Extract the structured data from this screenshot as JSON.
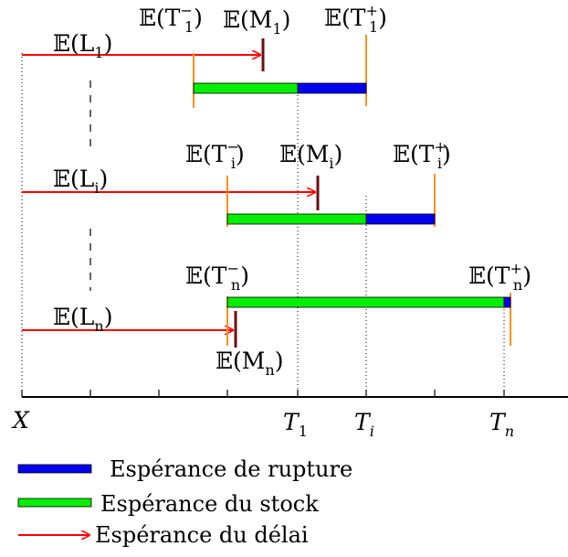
{
  "colors": {
    "rupture": "#0000ee",
    "stock": "#00ee00",
    "delai": "#ff0000",
    "boundary": "#ff9020",
    "mean_marker": "#6b0f0f",
    "axis": "#000000"
  },
  "rows": [
    {
      "id": "1",
      "L": "1",
      "T_minus": "1",
      "M": "1",
      "T_plus": "1",
      "stock_label": "T_1"
    },
    {
      "id": "i",
      "L": "i",
      "T_minus": "i",
      "M": "i",
      "T_plus": "i",
      "stock_label": "T_i"
    },
    {
      "id": "n",
      "L": "n",
      "T_minus": "n",
      "M": "n",
      "T_plus": "n",
      "stock_label": "T_n"
    }
  ],
  "axis": {
    "origin_label": "X",
    "tick_labels": [
      {
        "main": "T",
        "sub": "1"
      },
      {
        "main": "T",
        "sub": "i"
      },
      {
        "main": "T",
        "sub": "n"
      }
    ]
  },
  "legend": [
    {
      "key": "rupture",
      "text": "Espérance de rupture"
    },
    {
      "key": "stock",
      "text": "Espérance du stock"
    },
    {
      "key": "delai",
      "text": "Espérance du délai"
    }
  ],
  "symbols": {
    "expectation": "𝔼",
    "L": "L",
    "T": "T",
    "M": "M",
    "minus": "−",
    "plus": "+"
  }
}
